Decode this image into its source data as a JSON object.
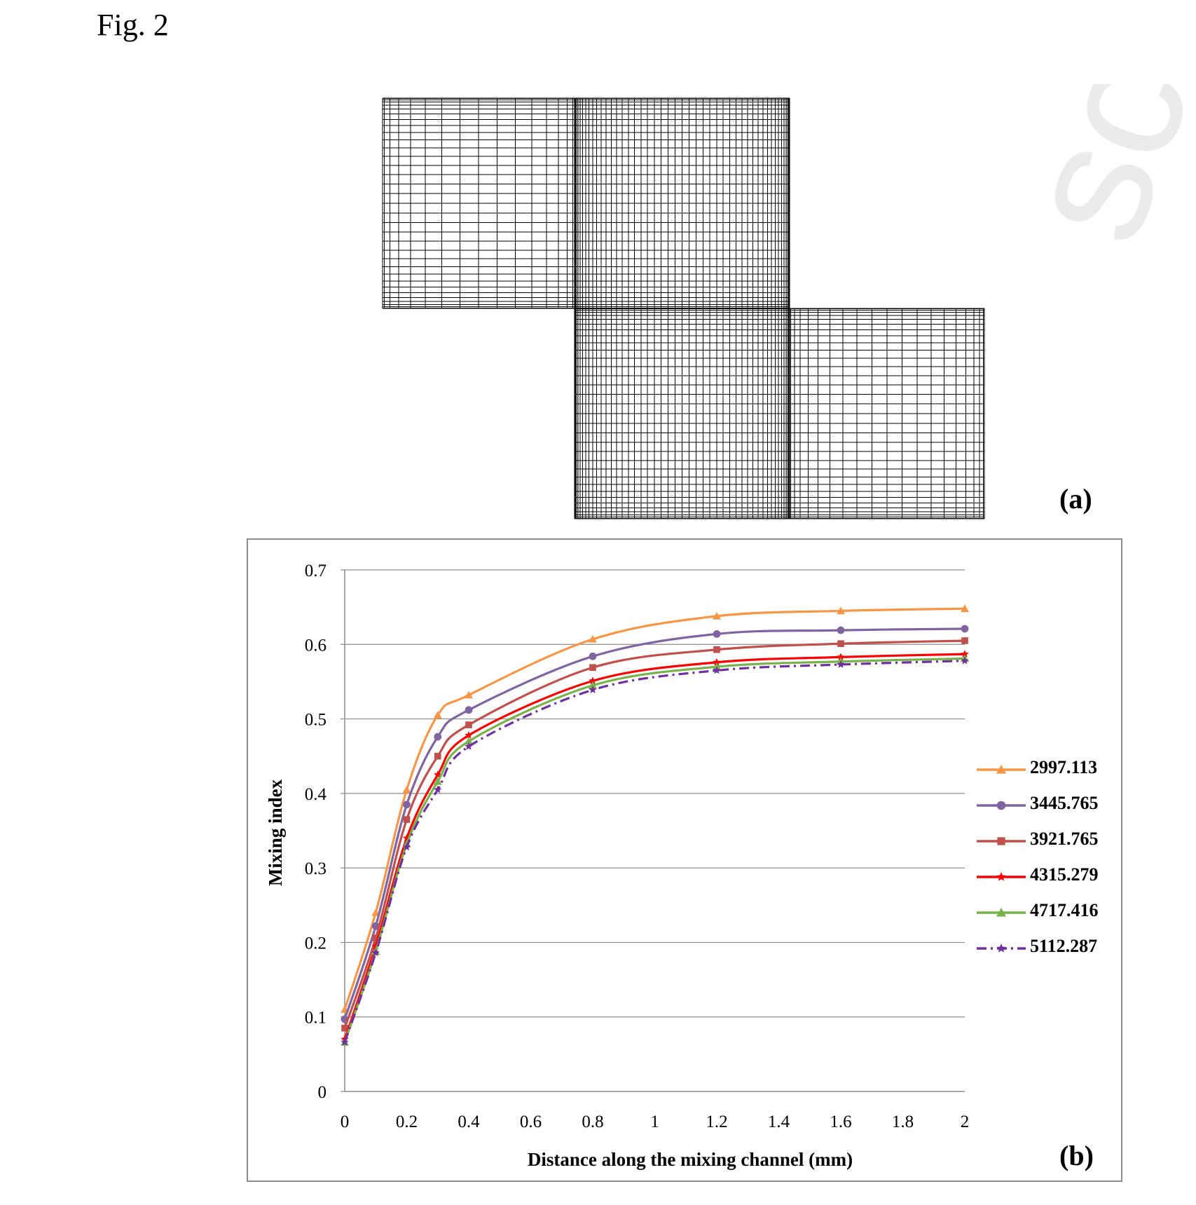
{
  "figure_label": "Fig. 2",
  "panel_a_label": "(a)",
  "panel_b_label": "(b)",
  "watermark_text": "script",
  "chart_data": {
    "type": "line",
    "title": "",
    "xlabel": "Distance along the mixing channel (mm)",
    "ylabel": "Mixing index",
    "xlim": [
      0,
      2
    ],
    "ylim": [
      0,
      0.7
    ],
    "x_ticks": [
      "0",
      "0.2",
      "0.4",
      "0.6",
      "0.8",
      "1",
      "1.2",
      "1.4",
      "1.6",
      "1.8",
      "2"
    ],
    "y_ticks": [
      "0",
      "0.1",
      "0.2",
      "0.3",
      "0.4",
      "0.5",
      "0.6",
      "0.7"
    ],
    "grid": "horizontal",
    "legend_position": "right",
    "x": [
      0,
      0.1,
      0.2,
      0.3,
      0.4,
      0.8,
      1.2,
      1.6,
      2.0
    ],
    "series": [
      {
        "name": "2997.113",
        "color": "#f79646",
        "marker": "triangle",
        "dash": "solid",
        "values": [
          0.11,
          0.24,
          0.405,
          0.505,
          0.532,
          0.607,
          0.638,
          0.645,
          0.648
        ]
      },
      {
        "name": "3445.765",
        "color": "#8064a2",
        "marker": "circle",
        "dash": "solid",
        "values": [
          0.097,
          0.222,
          0.385,
          0.476,
          0.512,
          0.584,
          0.614,
          0.619,
          0.621
        ]
      },
      {
        "name": "3921.765",
        "color": "#c0504d",
        "marker": "square",
        "dash": "solid",
        "values": [
          0.085,
          0.206,
          0.365,
          0.45,
          0.492,
          0.569,
          0.593,
          0.601,
          0.605
        ]
      },
      {
        "name": "4315.279",
        "color": "#ff0000",
        "marker": "star",
        "dash": "solid",
        "values": [
          0.07,
          0.195,
          0.34,
          0.425,
          0.478,
          0.551,
          0.576,
          0.583,
          0.587
        ]
      },
      {
        "name": "4717.416",
        "color": "#77b24a",
        "marker": "triangle",
        "dash": "solid",
        "values": [
          0.066,
          0.188,
          0.332,
          0.416,
          0.47,
          0.545,
          0.57,
          0.577,
          0.581
        ]
      },
      {
        "name": "5112.287",
        "color": "#7030a0",
        "marker": "star",
        "dash": "dashdot",
        "values": [
          0.066,
          0.186,
          0.328,
          0.405,
          0.463,
          0.539,
          0.565,
          0.573,
          0.578
        ]
      }
    ]
  }
}
